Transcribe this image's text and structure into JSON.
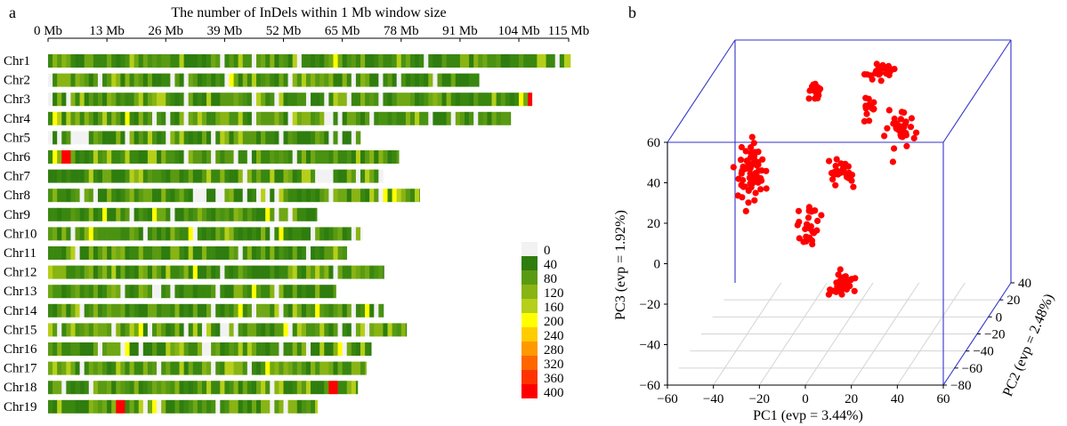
{
  "panels": {
    "a": {
      "label": "a"
    },
    "b": {
      "label": "b"
    }
  },
  "chart_data": [
    {
      "type": "heatmap",
      "title": "The number of InDels within 1 Mb window size",
      "x_unit": "Mb",
      "x_range": [
        0,
        115
      ],
      "x_ticks": [
        "0 Mb",
        "13 Mb",
        "26 Mb",
        "39 Mb",
        "52 Mb",
        "65 Mb",
        "78 Mb",
        "91 Mb",
        "104 Mb",
        "115 Mb"
      ],
      "chromosomes": [
        {
          "name": "Chr1",
          "length_mb": 115.4,
          "high_windows_mb": []
        },
        {
          "name": "Chr2",
          "length_mb": 95.2,
          "high_windows_mb": []
        },
        {
          "name": "Chr3",
          "length_mb": 106.9,
          "high_windows_mb": [
            106.2
          ]
        },
        {
          "name": "Chr4",
          "length_mb": 102.2,
          "high_windows_mb": []
        },
        {
          "name": "Chr5",
          "length_mb": 69.0,
          "high_windows_mb": []
        },
        {
          "name": "Chr6",
          "length_mb": 77.5,
          "high_windows_mb": [
            3.5
          ]
        },
        {
          "name": "Chr7",
          "length_mb": 74.0,
          "high_windows_mb": []
        },
        {
          "name": "Chr8",
          "length_mb": 82.1,
          "high_windows_mb": []
        },
        {
          "name": "Chr9",
          "length_mb": 59.4,
          "high_windows_mb": []
        },
        {
          "name": "Chr10",
          "length_mb": 69.4,
          "high_windows_mb": []
        },
        {
          "name": "Chr11",
          "length_mb": 66.0,
          "high_windows_mb": []
        },
        {
          "name": "Chr12",
          "length_mb": 74.2,
          "high_windows_mb": []
        },
        {
          "name": "Chr13",
          "length_mb": 63.6,
          "high_windows_mb": []
        },
        {
          "name": "Chr14",
          "length_mb": 74.1,
          "high_windows_mb": []
        },
        {
          "name": "Chr15",
          "length_mb": 79.2,
          "high_windows_mb": []
        },
        {
          "name": "Chr16",
          "length_mb": 71.4,
          "high_windows_mb": []
        },
        {
          "name": "Chr17",
          "length_mb": 70.3,
          "high_windows_mb": []
        },
        {
          "name": "Chr18",
          "length_mb": 68.4,
          "high_windows_mb": [
            62.5
          ]
        },
        {
          "name": "Chr19",
          "length_mb": 59.5,
          "high_windows_mb": [
            15.5
          ]
        }
      ],
      "legend": {
        "placement": "bottom-right",
        "labels": [
          "0",
          "40",
          "80",
          "120",
          "160",
          "200",
          "240",
          "280",
          "320",
          "360",
          "400"
        ],
        "colors": [
          "#f2f2f2",
          "#2e7d0e",
          "#5a9a12",
          "#88b414",
          "#b5cf1a",
          "#ffff00",
          "#ffcc00",
          "#ff9900",
          "#ff6600",
          "#ff3300",
          "#ff0000"
        ]
      }
    },
    {
      "type": "scatter",
      "projection": "3d",
      "xlabel": "PC1 (evp = 3.44%)",
      "ylabel": "PC2 (evp = 2.48%)",
      "zlabel": "PC3 (evp = 1.92%)",
      "xlim": [
        -60,
        60
      ],
      "ylim": [
        -80,
        40
      ],
      "zlim": [
        -60,
        60
      ],
      "x_ticks": [
        "−60",
        "−40",
        "−20",
        "0",
        "20",
        "40",
        "60"
      ],
      "y_ticks": [
        "−80",
        "−60",
        "−40",
        "−20",
        "0",
        "20",
        "40"
      ],
      "z_ticks": [
        "−60",
        "−40",
        "−20",
        "0",
        "20",
        "40",
        "60"
      ],
      "grid": true,
      "point_color": "#ff0000",
      "clusters": [
        {
          "center": [
            -36.4,
            -30.2,
            25.4
          ],
          "spread": [
            3,
            3,
            7
          ],
          "count": 64
        },
        {
          "center": [
            -9.9,
            -36.1,
            0.6
          ],
          "spread": [
            2.5,
            2,
            5
          ],
          "count": 28
        },
        {
          "center": [
            0.7,
            -19.0,
            19.2
          ],
          "spread": [
            3,
            2,
            4
          ],
          "count": 30
        },
        {
          "center": [
            7.9,
            -2.3,
            46.1
          ],
          "spread": [
            1.5,
            1.5,
            4
          ],
          "count": 14
        },
        {
          "center": [
            14.7,
            -72.9,
            -13.4
          ],
          "spread": [
            2.5,
            2,
            3
          ],
          "count": 30
        },
        {
          "center": [
            -26.3,
            44.9,
            33.8
          ],
          "spread": [
            1.5,
            1.5,
            2
          ],
          "count": 16
        },
        {
          "center": [
            8.3,
            54.9,
            9.6
          ],
          "spread": [
            3,
            2,
            5
          ],
          "count": 34
        },
        {
          "center": [
            18.4,
            -21.7,
            70.1
          ],
          "spread": [
            2.5,
            2,
            2
          ],
          "count": 24
        }
      ]
    }
  ]
}
